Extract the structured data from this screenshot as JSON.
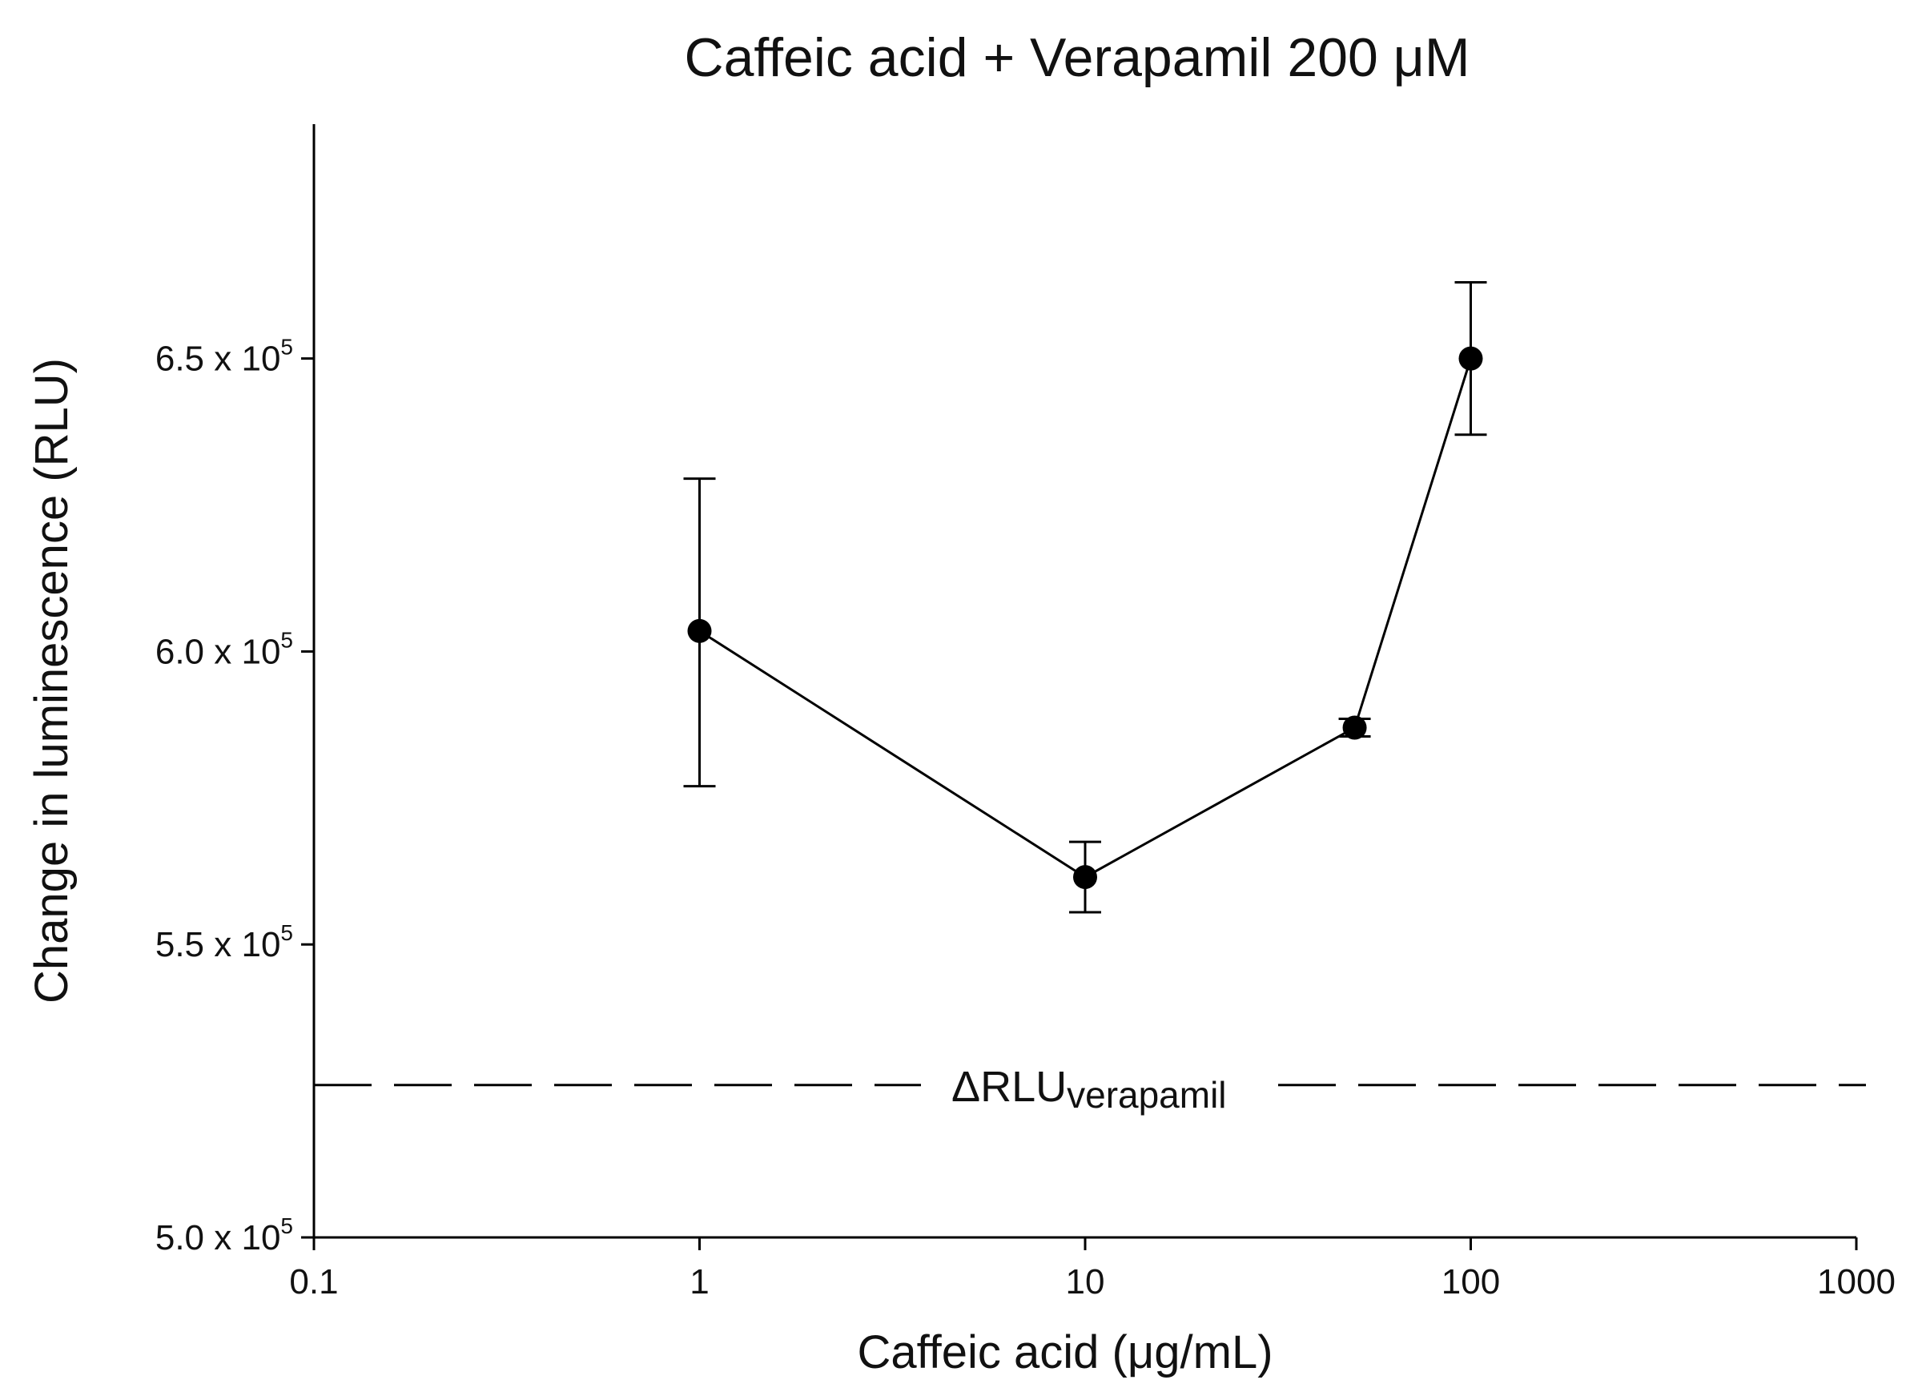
{
  "chart_data": {
    "type": "line",
    "title": "Caffeic acid + Verapamil 200 μM",
    "xlabel": "Caffeic acid (μg/mL)",
    "ylabel": "Change in luminescence (RLU)",
    "x_scale": "log",
    "xlim": [
      0.1,
      1000
    ],
    "ylim": [
      500000,
      690000
    ],
    "x_ticks": [
      {
        "value": 0.1,
        "label": "0.1"
      },
      {
        "value": 1,
        "label": "1"
      },
      {
        "value": 10,
        "label": "10"
      },
      {
        "value": 100,
        "label": "100"
      },
      {
        "value": 1000,
        "label": "1000"
      }
    ],
    "y_ticks": [
      {
        "value": 500000,
        "mantissa": "5.0 x 10",
        "exp": "5"
      },
      {
        "value": 550000,
        "mantissa": "5.5 x 10",
        "exp": "5"
      },
      {
        "value": 600000,
        "mantissa": "6.0 x 10",
        "exp": "5"
      },
      {
        "value": 650000,
        "mantissa": "6.5 x 10",
        "exp": "5"
      }
    ],
    "series": [
      {
        "points": [
          {
            "x": 1,
            "y": 603500,
            "err_low": 577000,
            "err_high": 629500
          },
          {
            "x": 10,
            "y": 561500,
            "err_low": 555500,
            "err_high": 567500
          },
          {
            "x": 50,
            "y": 587000,
            "err_low": 585500,
            "err_high": 588500
          },
          {
            "x": 100,
            "y": 650000,
            "err_low": 637000,
            "err_high": 663000
          }
        ]
      }
    ],
    "reference_line": {
      "y": 526000,
      "style": "dashed",
      "label_main": "ΔRLU",
      "label_sub": "verapamil"
    },
    "grid": false,
    "legend": "none",
    "colors": {
      "line": "#000000",
      "marker": "#000000"
    }
  }
}
